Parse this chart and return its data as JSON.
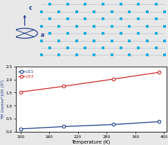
{
  "top_bg_color": "#f2f2f2",
  "dot_color": "#1aaedc",
  "line_color": "#c0c8d0",
  "num_rows": 8,
  "axis_color": "#1a3a8a",
  "U11_temps": [
    100,
    190,
    295,
    390
  ],
  "U11_values": [
    0.1,
    0.19,
    0.27,
    0.38
  ],
  "U33_temps": [
    100,
    190,
    295,
    390
  ],
  "U33_values": [
    1.52,
    1.74,
    2.02,
    2.28
  ],
  "U11_color": "#1a3a8a",
  "U33_color": "#cc2222",
  "xlabel": "Temperature (K)",
  "ylabel": "TM Uaniso*100 (Å²)",
  "xlim": [
    90,
    405
  ],
  "ylim": [
    0,
    2.5
  ],
  "yticks": [
    0.0,
    0.5,
    1.0,
    1.5,
    2.0,
    2.5
  ],
  "xticks": [
    100,
    160,
    220,
    280,
    340,
    400
  ],
  "label_U11": "U11",
  "label_U33": "U33",
  "plot_bg": "#ffffff",
  "outer_bg": "#e8e8e8"
}
